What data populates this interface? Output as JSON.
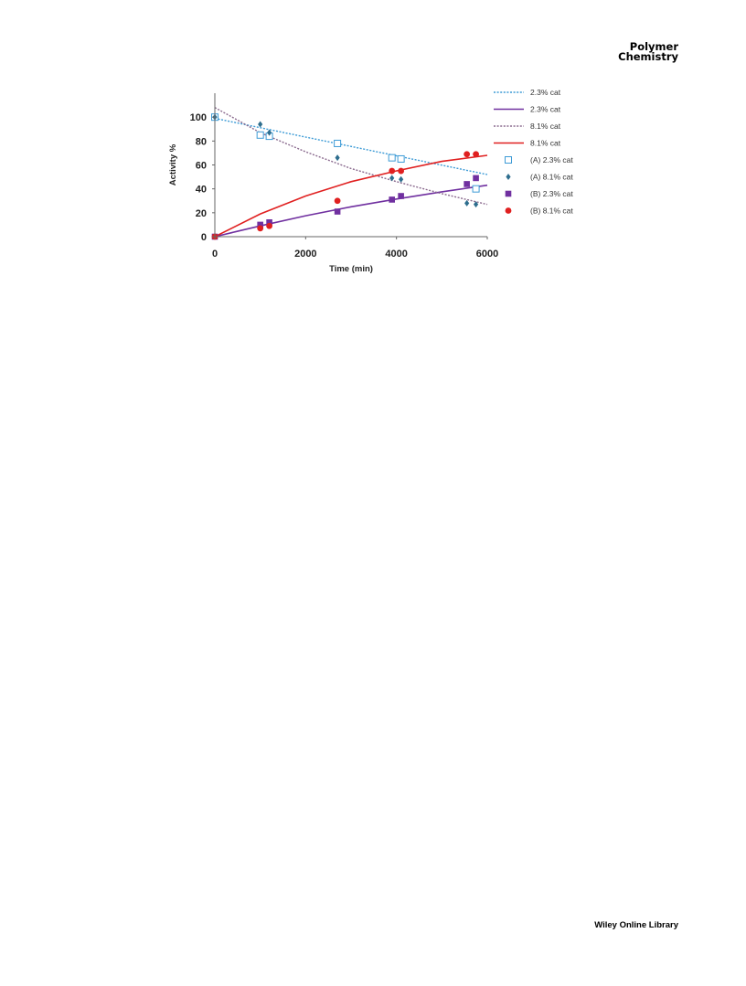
{
  "header": {
    "journal_line1": "Polymer",
    "journal_line2": "Chemistry"
  },
  "footer": {
    "publisher": "Wiley Online Library"
  },
  "chart_data": {
    "type": "scatter",
    "title": "",
    "xlabel": "Time (min)",
    "ylabel": "Activity %",
    "xlim": [
      0,
      6000
    ],
    "ylim": [
      0,
      120
    ],
    "x_ticks": [
      "0",
      "2000",
      "4000",
      "6000"
    ],
    "y_ticks": [
      "0",
      "20",
      "40",
      "60",
      "80",
      "100"
    ],
    "grid": false,
    "legend_position": "right",
    "legend": [
      "2.3% cat",
      "2.3% cat",
      "8.1% cat",
      "8.1% cat",
      "(A) 2.3% cat",
      "(A) 8.1% cat",
      "(B) 2.3% cat",
      "(B) 8.1% cat"
    ],
    "fit_lines": [
      {
        "legend_index": 0,
        "color": "#3d9bd6",
        "style": "dotted",
        "x": [
          0,
          6000
        ],
        "y": [
          99,
          52
        ]
      },
      {
        "legend_index": 1,
        "color": "#7030a0",
        "style": "solid",
        "x": [
          0,
          1000,
          2000,
          3000,
          4000,
          5000,
          6000
        ],
        "y": [
          0,
          9,
          17.5,
          25,
          31.5,
          37.5,
          43
        ]
      },
      {
        "legend_index": 2,
        "color": "#8a6a8e",
        "style": "dotted",
        "x": [
          0,
          1000,
          2000,
          3000,
          4000,
          5000,
          6000
        ],
        "y": [
          108,
          87,
          71,
          57,
          46,
          36,
          27
        ]
      },
      {
        "legend_index": 3,
        "color": "#e02020",
        "style": "solid",
        "x": [
          0,
          1000,
          2000,
          3000,
          4000,
          5000,
          6000
        ],
        "y": [
          0,
          19,
          34,
          46,
          55,
          63,
          68
        ]
      }
    ],
    "series": [
      {
        "legend_index": 4,
        "marker": "square-open",
        "color": "#3d9bd6",
        "x": [
          0,
          1000,
          1200,
          2700,
          3900,
          4100,
          5750
        ],
        "y": [
          100,
          85,
          84,
          78,
          66,
          65,
          40
        ]
      },
      {
        "legend_index": 5,
        "marker": "diamond",
        "color": "#2e6e8e",
        "x": [
          0,
          1000,
          1200,
          2700,
          3900,
          4100,
          5550,
          5750
        ],
        "y": [
          100,
          94,
          87,
          66,
          49,
          48,
          28,
          27
        ]
      },
      {
        "legend_index": 6,
        "marker": "square",
        "color": "#7030a0",
        "x": [
          0,
          1000,
          1200,
          2700,
          3900,
          4100,
          5550,
          5750
        ],
        "y": [
          0,
          10,
          12,
          21,
          31,
          34,
          44,
          49
        ]
      },
      {
        "legend_index": 7,
        "marker": "circle",
        "color": "#e02020",
        "x": [
          0,
          1000,
          1200,
          2700,
          3900,
          4100,
          5550,
          5750
        ],
        "y": [
          0,
          7,
          9,
          30,
          55,
          55,
          69,
          69
        ]
      }
    ]
  }
}
